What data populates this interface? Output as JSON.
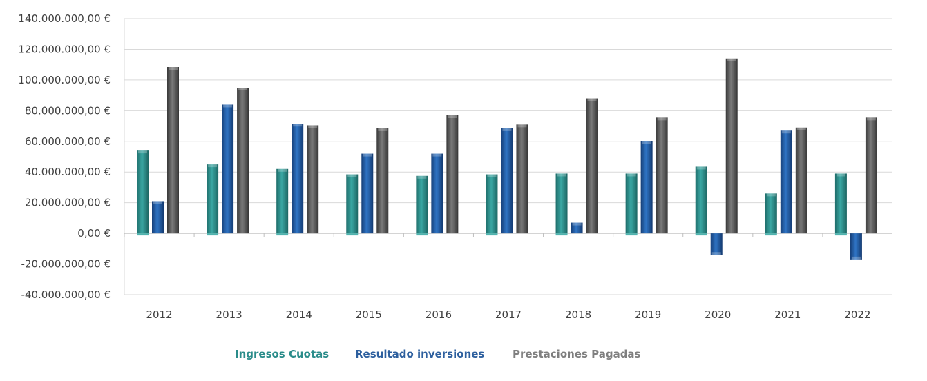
{
  "chart_data": {
    "type": "bar",
    "categories": [
      "2012",
      "2013",
      "2014",
      "2015",
      "2016",
      "2017",
      "2018",
      "2019",
      "2020",
      "2021",
      "2022"
    ],
    "series": [
      {
        "name": "Ingresos Cuotas",
        "color": "#2e8f8c",
        "values": [
          54000000,
          45000000,
          42000000,
          38500000,
          37500000,
          38500000,
          39000000,
          39000000,
          43500000,
          26000000,
          39000000
        ]
      },
      {
        "name": "Resultado inversiones",
        "color": "#1f5fa8",
        "values": [
          21000000,
          84000000,
          71500000,
          52000000,
          52000000,
          68500000,
          7000000,
          60000000,
          -14000000,
          67000000,
          -17000000
        ]
      },
      {
        "name": "Prestaciones Pagadas",
        "color": "#5a5a5a",
        "values": [
          108500000,
          95000000,
          70500000,
          68500000,
          77000000,
          71000000,
          88000000,
          75500000,
          114000000,
          69000000,
          75500000
        ]
      }
    ],
    "ylim": [
      -40000000,
      140000000
    ],
    "yticks": [
      140000000,
      120000000,
      100000000,
      80000000,
      60000000,
      40000000,
      20000000,
      0,
      -20000000,
      -40000000
    ],
    "ytick_labels": [
      "140.000.000,00 €",
      "120.000.000,00 €",
      "100.000.000,00 €",
      "80.000.000,00 €",
      "60.000.000,00 €",
      "40.000.000,00 €",
      "20.000.000,00 €",
      "0,00 €",
      "-20.000.000,00 €",
      "-40.000.000,00 €"
    ],
    "grid": true,
    "legend_position": "bottom-center",
    "legend_colors": [
      "#2a8c8a",
      "#2d5f9e",
      "#7f7f7f"
    ]
  }
}
